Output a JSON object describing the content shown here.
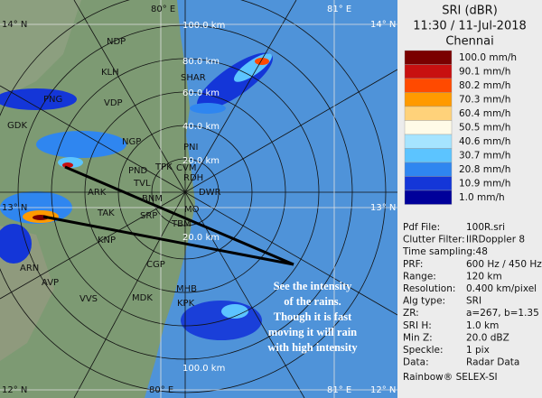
{
  "map": {
    "coords": [
      "14° N",
      "80° E",
      "81° E",
      "14° N",
      "13° N",
      "13° N",
      "12° N",
      "80° E",
      "81° E",
      "12° N"
    ],
    "ranges": [
      "100.0 km",
      "80.0 km",
      "60.0 km",
      "40.0 km",
      "20.0 km",
      "20.0 km",
      "100.0 km"
    ],
    "places": [
      "NDP",
      "KLH",
      "SHAR",
      "VDP",
      "PNG",
      "GDK",
      "NGP",
      "PNI",
      "PND",
      "TPK",
      "CVM",
      "RDH",
      "TVL",
      "ARK",
      "DWR",
      "BNM",
      "MO",
      "SRP",
      "TAK",
      "TBM",
      "KNP",
      "CGP",
      "ARN",
      "AVP",
      "VVS",
      "MDK",
      "MHB",
      "KPK"
    ],
    "annotation": [
      "See the intensity",
      "of the rains.",
      "Though it is fast",
      "moving it will rain",
      "with high intensity"
    ]
  },
  "panel": {
    "title": "SRI (dBR)",
    "time": "11:30 / 11-Jul-2018",
    "site": "Chennai",
    "legend": [
      {
        "label": "100.0 mm/h",
        "color": "#7a0000"
      },
      {
        "label": "90.1 mm/h",
        "color": "#c81010"
      },
      {
        "label": "80.2 mm/h",
        "color": "#ff4a00"
      },
      {
        "label": "70.3 mm/h",
        "color": "#ff9a00"
      },
      {
        "label": "60.4 mm/h",
        "color": "#ffd27a"
      },
      {
        "label": "50.5 mm/h",
        "color": "#fffbe8"
      },
      {
        "label": "40.6 mm/h",
        "color": "#a6e4ff"
      },
      {
        "label": "30.7 mm/h",
        "color": "#5cc4ff"
      },
      {
        "label": "20.8 mm/h",
        "color": "#2f86f0"
      },
      {
        "label": "10.9 mm/h",
        "color": "#1436d8"
      },
      {
        "label": "1.0 mm/h",
        "color": "#00009a"
      }
    ],
    "info": [
      [
        "Pdf File:",
        "100R.sri"
      ],
      [
        "Clutter Filter:",
        "IIRDoppler 8"
      ],
      [
        "Time sampling:48",
        ""
      ],
      [
        "PRF:",
        "600 Hz / 450 Hz"
      ],
      [
        "Range:",
        "120 km"
      ],
      [
        "Resolution:",
        "0.400 km/pixel"
      ],
      [
        "Alg type:",
        "SRI"
      ],
      [
        "ZR:",
        "a=267, b=1.35"
      ],
      [
        "SRI H:",
        "1.0 km"
      ],
      [
        "Min Z:",
        "20.0 dBZ"
      ],
      [
        "Speckle:",
        "1 pix"
      ],
      [
        "Data:",
        "Radar Data"
      ]
    ],
    "footer": "Rainbow® SELEX-SI"
  }
}
